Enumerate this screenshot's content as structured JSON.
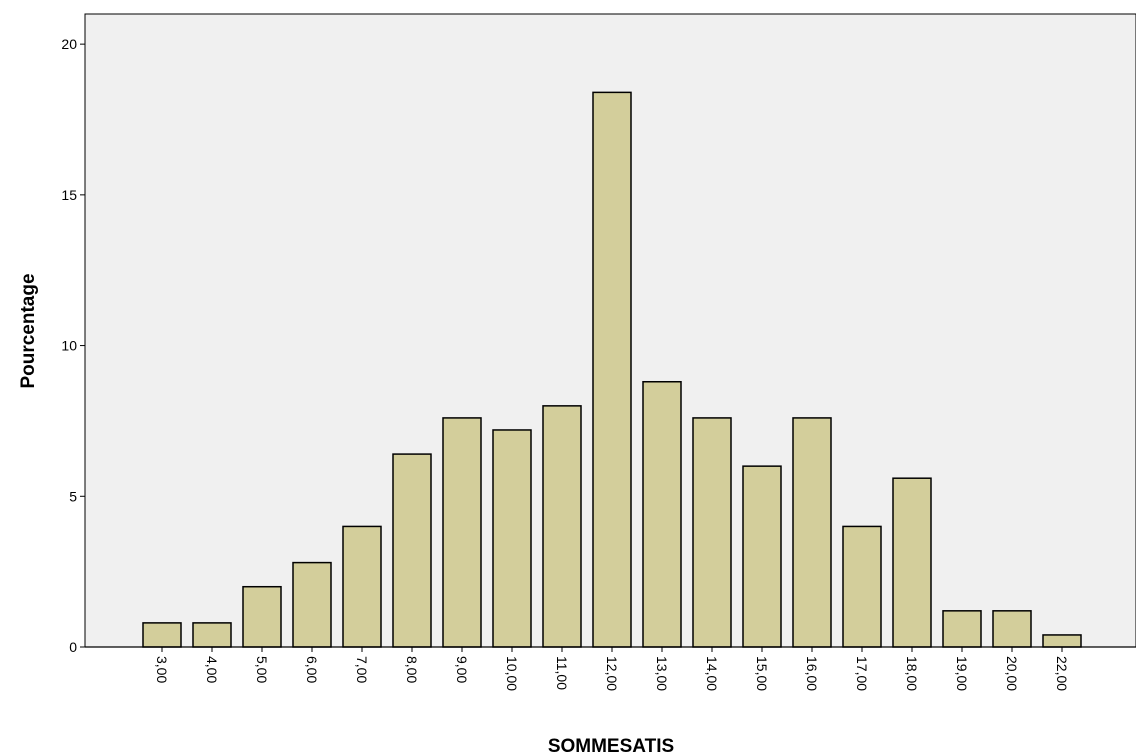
{
  "chart_data": {
    "type": "bar",
    "title": "",
    "xlabel": "SOMMESATIS",
    "ylabel": "Pourcentage",
    "categories": [
      "3,00",
      "4,00",
      "5,00",
      "6,00",
      "7,00",
      "8,00",
      "9,00",
      "10,00",
      "11,00",
      "12,00",
      "13,00",
      "14,00",
      "15,00",
      "16,00",
      "17,00",
      "18,00",
      "19,00",
      "20,00",
      "22,00"
    ],
    "values": [
      0.8,
      0.8,
      2.0,
      2.8,
      4.0,
      6.4,
      7.6,
      7.2,
      8.0,
      18.4,
      8.8,
      7.6,
      6.0,
      7.6,
      4.0,
      5.6,
      1.2,
      1.2,
      0.4
    ],
    "ylim": [
      0,
      21
    ],
    "yticks": [
      "0",
      "5",
      "10",
      "15",
      "20"
    ],
    "grid": false,
    "legend": "none",
    "colors": {
      "bar_fill": "#d3ce9b",
      "bar_stroke": "#000000",
      "plot_background": "#f0f0f0"
    }
  }
}
